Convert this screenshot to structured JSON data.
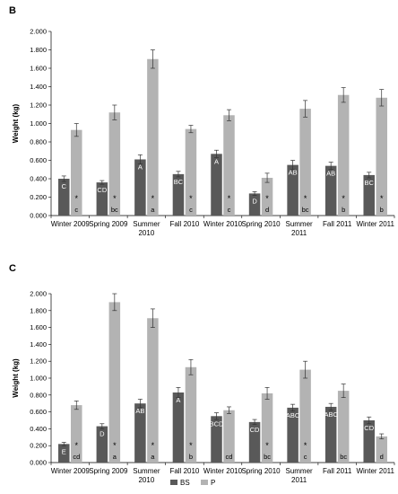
{
  "chart_data": [
    {
      "panel_label": "B",
      "type": "bar",
      "ylabel": "Weight (kg)",
      "ylim": [
        0,
        2.0
      ],
      "yticks": [
        "0.000",
        "0.200",
        "0.400",
        "0.600",
        "0.800",
        "1.000",
        "1.200",
        "1.400",
        "1.600",
        "1.800",
        "2.000"
      ],
      "categories": [
        [
          "Winter 2009"
        ],
        [
          "Spring 2009"
        ],
        [
          "Summer",
          "2010"
        ],
        [
          "Fall  2010"
        ],
        [
          "Winter 2010"
        ],
        [
          "Spring 2010"
        ],
        [
          "Summer",
          "2011"
        ],
        [
          "Fall  2011"
        ],
        [
          "Winter 2011"
        ]
      ],
      "legend": "none",
      "series": [
        {
          "name": "BS",
          "color": "#595959",
          "values": [
            0.4,
            0.36,
            0.61,
            0.45,
            0.67,
            0.24,
            0.55,
            0.54,
            0.44
          ],
          "errors": [
            0.03,
            0.02,
            0.05,
            0.03,
            0.04,
            0.02,
            0.05,
            0.04,
            0.03
          ],
          "letters": [
            "C",
            "CD",
            "A",
            "BC",
            "A",
            "D",
            "AB",
            "AB",
            "BC"
          ]
        },
        {
          "name": "P",
          "color": "#b3b3b3",
          "values": [
            0.93,
            1.12,
            1.7,
            0.94,
            1.09,
            0.41,
            1.16,
            1.31,
            1.28
          ],
          "errors": [
            0.07,
            0.08,
            0.1,
            0.04,
            0.06,
            0.05,
            0.09,
            0.08,
            0.09
          ],
          "letters": [
            "c",
            "bc",
            "a",
            "c",
            "c",
            "d",
            "bc",
            "b",
            "b"
          ]
        }
      ],
      "stars": [
        "*",
        "*",
        "*",
        "*",
        "*",
        "*",
        "*",
        "*",
        "*"
      ]
    },
    {
      "panel_label": "C",
      "type": "bar",
      "ylabel": "Weight (kg)",
      "ylim": [
        0,
        2.0
      ],
      "yticks": [
        "0.000",
        "0.200",
        "0.400",
        "0.600",
        "0.800",
        "1.000",
        "1.200",
        "1.400",
        "1.600",
        "1.800",
        "2.000"
      ],
      "categories": [
        [
          "Winter 2009"
        ],
        [
          "Spring 2009"
        ],
        [
          "Summer",
          "2010"
        ],
        [
          "Fall 2010"
        ],
        [
          "Winter 2010"
        ],
        [
          "Spring 2010"
        ],
        [
          "Summer",
          "2011"
        ],
        [
          "Fall 2011"
        ],
        [
          "Winter 2011"
        ]
      ],
      "legend": "bottom",
      "series": [
        {
          "name": "BS",
          "color": "#595959",
          "values": [
            0.22,
            0.43,
            0.7,
            0.83,
            0.55,
            0.48,
            0.65,
            0.66,
            0.5
          ],
          "errors": [
            0.02,
            0.03,
            0.05,
            0.06,
            0.04,
            0.03,
            0.04,
            0.04,
            0.04
          ],
          "letters": [
            "E",
            "D",
            "AB",
            "A",
            "BCD",
            "CD",
            "ABC",
            "ABC",
            "CD"
          ]
        },
        {
          "name": "P",
          "color": "#b3b3b3",
          "values": [
            0.68,
            1.9,
            1.71,
            1.13,
            0.62,
            0.82,
            1.1,
            0.85,
            0.31
          ],
          "errors": [
            0.05,
            0.1,
            0.11,
            0.09,
            0.04,
            0.07,
            0.1,
            0.08,
            0.03
          ],
          "letters": [
            "cd",
            "a",
            "a",
            "b",
            "cd",
            "bc",
            "c",
            "bc",
            "d"
          ]
        }
      ],
      "stars": [
        "*",
        "*",
        "*",
        "*",
        "",
        "*",
        "*",
        "",
        ""
      ]
    }
  ]
}
